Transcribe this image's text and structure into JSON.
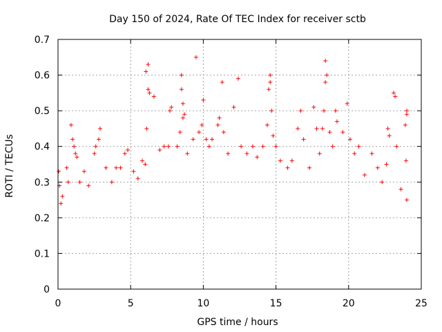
{
  "chart_data": {
    "type": "scatter",
    "title": "Day 150 of 2024, Rate Of TEC Index for receiver sctb",
    "xlabel": "GPS time / hours",
    "ylabel": "ROTI / TECUs",
    "xlim": [
      0,
      25
    ],
    "ylim": [
      0,
      0.7
    ],
    "x_ticks": [
      0,
      5,
      10,
      15,
      20,
      25
    ],
    "y_ticks": [
      0,
      0.1,
      0.2,
      0.3,
      0.4,
      0.5,
      0.6,
      0.7
    ],
    "x_tick_labels": [
      "0",
      "5",
      "10",
      "15",
      "20",
      "25"
    ],
    "y_tick_labels": [
      "0",
      "0.1",
      "0.2",
      "0.3",
      "0.4",
      "0.5",
      "0.6",
      "0.7"
    ],
    "grid": true,
    "marker": "+",
    "series": [
      {
        "color": "#ff0000",
        "points": [
          [
            0.05,
            0.33
          ],
          [
            0.1,
            0.29
          ],
          [
            0.2,
            0.24
          ],
          [
            0.3,
            0.26
          ],
          [
            0.6,
            0.34
          ],
          [
            0.7,
            0.3
          ],
          [
            0.9,
            0.46
          ],
          [
            1.0,
            0.42
          ],
          [
            1.1,
            0.4
          ],
          [
            1.2,
            0.38
          ],
          [
            1.3,
            0.37
          ],
          [
            1.5,
            0.3
          ],
          [
            1.8,
            0.33
          ],
          [
            2.1,
            0.29
          ],
          [
            2.5,
            0.38
          ],
          [
            2.6,
            0.4
          ],
          [
            2.8,
            0.42
          ],
          [
            2.9,
            0.45
          ],
          [
            3.3,
            0.34
          ],
          [
            3.7,
            0.3
          ],
          [
            4.0,
            0.34
          ],
          [
            4.3,
            0.34
          ],
          [
            4.6,
            0.38
          ],
          [
            4.8,
            0.39
          ],
          [
            5.2,
            0.33
          ],
          [
            5.5,
            0.31
          ],
          [
            5.8,
            0.36
          ],
          [
            6.0,
            0.35
          ],
          [
            6.05,
            0.61
          ],
          [
            6.2,
            0.63
          ],
          [
            6.2,
            0.56
          ],
          [
            6.3,
            0.55
          ],
          [
            6.1,
            0.45
          ],
          [
            6.6,
            0.54
          ],
          [
            7.0,
            0.39
          ],
          [
            7.3,
            0.4
          ],
          [
            7.6,
            0.4
          ],
          [
            7.7,
            0.5
          ],
          [
            7.8,
            0.51
          ],
          [
            8.2,
            0.4
          ],
          [
            8.4,
            0.44
          ],
          [
            8.5,
            0.6
          ],
          [
            8.5,
            0.56
          ],
          [
            8.6,
            0.52
          ],
          [
            8.6,
            0.48
          ],
          [
            8.7,
            0.49
          ],
          [
            8.9,
            0.38
          ],
          [
            9.3,
            0.42
          ],
          [
            9.5,
            0.65
          ],
          [
            9.7,
            0.44
          ],
          [
            9.9,
            0.46
          ],
          [
            10.0,
            0.53
          ],
          [
            10.2,
            0.42
          ],
          [
            10.4,
            0.4
          ],
          [
            10.6,
            0.42
          ],
          [
            11.0,
            0.46
          ],
          [
            11.1,
            0.48
          ],
          [
            11.3,
            0.58
          ],
          [
            11.4,
            0.44
          ],
          [
            11.7,
            0.38
          ],
          [
            12.1,
            0.51
          ],
          [
            12.4,
            0.59
          ],
          [
            12.6,
            0.4
          ],
          [
            13.0,
            0.38
          ],
          [
            13.4,
            0.4
          ],
          [
            13.7,
            0.37
          ],
          [
            14.1,
            0.4
          ],
          [
            14.4,
            0.46
          ],
          [
            14.5,
            0.56
          ],
          [
            14.6,
            0.58
          ],
          [
            14.6,
            0.6
          ],
          [
            14.7,
            0.5
          ],
          [
            14.8,
            0.43
          ],
          [
            15.0,
            0.4
          ],
          [
            15.3,
            0.36
          ],
          [
            15.8,
            0.34
          ],
          [
            16.1,
            0.36
          ],
          [
            16.5,
            0.45
          ],
          [
            16.7,
            0.5
          ],
          [
            16.9,
            0.42
          ],
          [
            17.3,
            0.34
          ],
          [
            17.6,
            0.51
          ],
          [
            17.8,
            0.45
          ],
          [
            18.0,
            0.38
          ],
          [
            18.2,
            0.45
          ],
          [
            18.3,
            0.5
          ],
          [
            18.4,
            0.64
          ],
          [
            18.5,
            0.6
          ],
          [
            18.4,
            0.58
          ],
          [
            18.7,
            0.44
          ],
          [
            18.9,
            0.4
          ],
          [
            19.1,
            0.5
          ],
          [
            19.2,
            0.47
          ],
          [
            19.6,
            0.44
          ],
          [
            19.9,
            0.52
          ],
          [
            20.1,
            0.42
          ],
          [
            20.4,
            0.38
          ],
          [
            20.7,
            0.4
          ],
          [
            21.1,
            0.32
          ],
          [
            21.6,
            0.38
          ],
          [
            22.0,
            0.34
          ],
          [
            22.3,
            0.3
          ],
          [
            22.6,
            0.35
          ],
          [
            22.7,
            0.45
          ],
          [
            22.8,
            0.43
          ],
          [
            23.1,
            0.55
          ],
          [
            23.2,
            0.54
          ],
          [
            23.3,
            0.4
          ],
          [
            23.6,
            0.28
          ],
          [
            23.9,
            0.46
          ],
          [
            24.0,
            0.49
          ],
          [
            24.0,
            0.5
          ],
          [
            23.95,
            0.36
          ],
          [
            24.0,
            0.25
          ]
        ]
      }
    ]
  }
}
